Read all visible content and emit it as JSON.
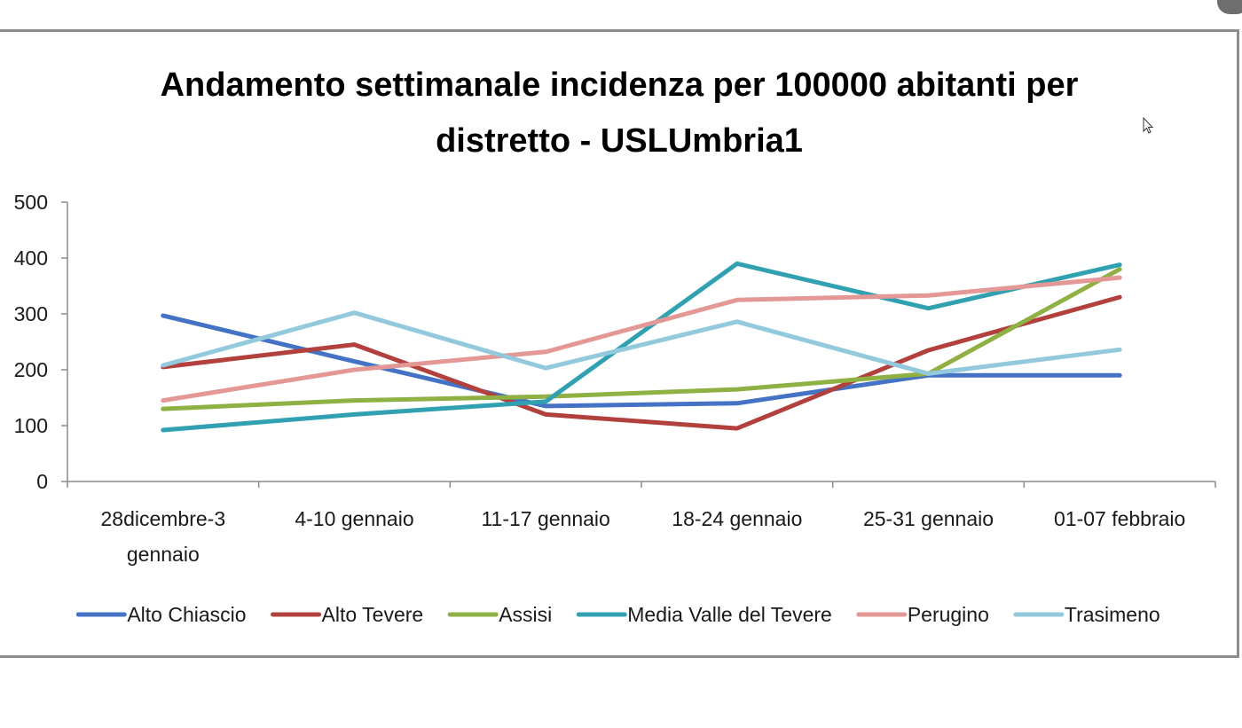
{
  "chart_data": {
    "type": "line",
    "title": "Andamento settimanale incidenza per 100000 abitanti per distretto - USLUmbria1",
    "title_lines": [
      "Andamento settimanale incidenza per 100000 abitanti per",
      "distretto - USLUmbria1"
    ],
    "xlabel": "",
    "ylabel": "",
    "ylim": [
      0,
      500
    ],
    "yticks": [
      0,
      100,
      200,
      300,
      400,
      500
    ],
    "grid": false,
    "legend_position": "bottom",
    "categories": [
      "28dicembre-3 gennaio",
      "4-10 gennaio",
      "11-17 gennaio",
      "18-24 gennaio",
      "25-31 gennaio",
      "01-07 febbraio"
    ],
    "category_lines": [
      [
        "28dicembre-3",
        "gennaio"
      ],
      [
        "4-10 gennaio"
      ],
      [
        "11-17 gennaio"
      ],
      [
        "18-24 gennaio"
      ],
      [
        "25-31 gennaio"
      ],
      [
        "01-07 febbraio"
      ]
    ],
    "series": [
      {
        "name": "Alto Chiascio",
        "color": "#4472c4",
        "values": [
          297,
          215,
          135,
          140,
          190,
          190
        ]
      },
      {
        "name": "Alto Tevere",
        "color": "#b2403d",
        "values": [
          205,
          245,
          120,
          95,
          235,
          330
        ]
      },
      {
        "name": "Assisi",
        "color": "#8fb043",
        "values": [
          130,
          145,
          152,
          165,
          193,
          380
        ]
      },
      {
        "name": "Media Valle del Tevere",
        "color": "#31a1b2",
        "values": [
          92,
          120,
          143,
          390,
          310,
          388
        ]
      },
      {
        "name": "Perugino",
        "color": "#e49895",
        "values": [
          145,
          200,
          232,
          325,
          333,
          365
        ]
      },
      {
        "name": "Trasimeno",
        "color": "#93c9dc",
        "values": [
          208,
          302,
          203,
          286,
          193,
          236
        ]
      }
    ]
  }
}
